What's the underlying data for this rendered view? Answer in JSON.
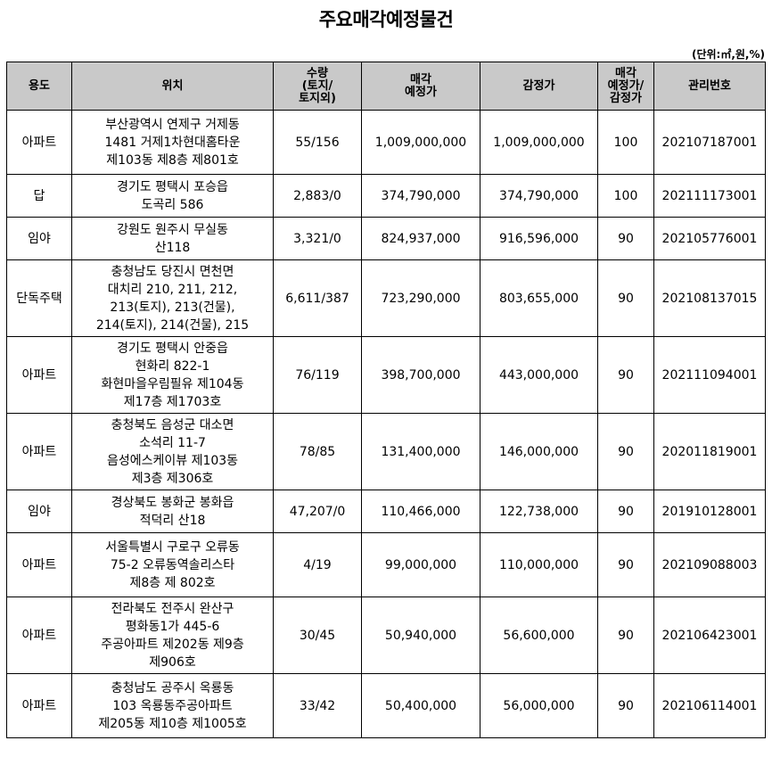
{
  "title": "주요매각예정물건",
  "unit_note": "(단위:㎡,원,%)",
  "table": {
    "headers": [
      [
        "용도"
      ],
      [
        "위치"
      ],
      [
        "수량",
        "(토지/",
        "토지외)"
      ],
      [
        "매각",
        "예정가"
      ],
      [
        "감정가"
      ],
      [
        "매각",
        "예정가/",
        "감정가"
      ],
      [
        "관리번호"
      ]
    ],
    "rows": [
      {
        "use": "아파트",
        "location": [
          "부산광역시 연제구 거제동",
          "1481 거제1차현대홈타운",
          "제103동 제8층 제801호"
        ],
        "qty": "55/156",
        "sale_price": "1,009,000,000",
        "appraisal": "1,009,000,000",
        "ratio": "100",
        "mgmt_no": "202107187001"
      },
      {
        "use": "답",
        "location": [
          "경기도 평택시 포승읍",
          "도곡리 586"
        ],
        "qty": "2,883/0",
        "sale_price": "374,790,000",
        "appraisal": "374,790,000",
        "ratio": "100",
        "mgmt_no": "202111173001"
      },
      {
        "use": "임야",
        "location": [
          "강원도 원주시 무실동",
          "산118"
        ],
        "qty": "3,321/0",
        "sale_price": "824,937,000",
        "appraisal": "916,596,000",
        "ratio": "90",
        "mgmt_no": "202105776001"
      },
      {
        "use": "단독주택",
        "location": [
          "충청남도 당진시 면천면",
          "대치리 210, 211, 212,",
          "213(토지), 213(건물),",
          "214(토지),  214(건물), 215"
        ],
        "qty": "6,611/387",
        "sale_price": "723,290,000",
        "appraisal": "803,655,000",
        "ratio": "90",
        "mgmt_no": "202108137015"
      },
      {
        "use": "아파트",
        "location": [
          "경기도 평택시 안중읍",
          "현화리 822-1",
          "화현마을우림필유 제104동",
          "제17층 제1703호"
        ],
        "qty": "76/119",
        "sale_price": "398,700,000",
        "appraisal": "443,000,000",
        "ratio": "90",
        "mgmt_no": "202111094001"
      },
      {
        "use": "아파트",
        "location": [
          "충청북도 음성군 대소면",
          "소석리 11-7",
          "음성에스케이뷰 제103동",
          "제3층 제306호"
        ],
        "qty": "78/85",
        "sale_price": "131,400,000",
        "appraisal": "146,000,000",
        "ratio": "90",
        "mgmt_no": "202011819001"
      },
      {
        "use": "임야",
        "location": [
          "경상북도 봉화군 봉화읍",
          "적덕리 산18"
        ],
        "qty": "47,207/0",
        "sale_price": "110,466,000",
        "appraisal": "122,738,000",
        "ratio": "90",
        "mgmt_no": "201910128001"
      },
      {
        "use": "아파트",
        "location": [
          "서울특별시 구로구 오류동",
          "75-2 오류동역솔리스타",
          "제8층 제 802호"
        ],
        "qty": "4/19",
        "sale_price": "99,000,000",
        "appraisal": "110,000,000",
        "ratio": "90",
        "mgmt_no": "202109088003"
      },
      {
        "use": "아파트",
        "location": [
          "전라북도 전주시 완산구",
          "평화동1가 445-6",
          "주공아파트 제202동 제9층",
          "제906호"
        ],
        "qty": "30/45",
        "sale_price": "50,940,000",
        "appraisal": "56,600,000",
        "ratio": "90",
        "mgmt_no": "202106423001"
      },
      {
        "use": "아파트",
        "location": [
          "충청남도 공주시 옥룡동",
          "103 옥룡동주공아파트",
          "제205동 제10층 제1005호"
        ],
        "qty": "33/42",
        "sale_price": "50,400,000",
        "appraisal": "56,000,000",
        "ratio": "90",
        "mgmt_no": "202106114001"
      }
    ]
  }
}
